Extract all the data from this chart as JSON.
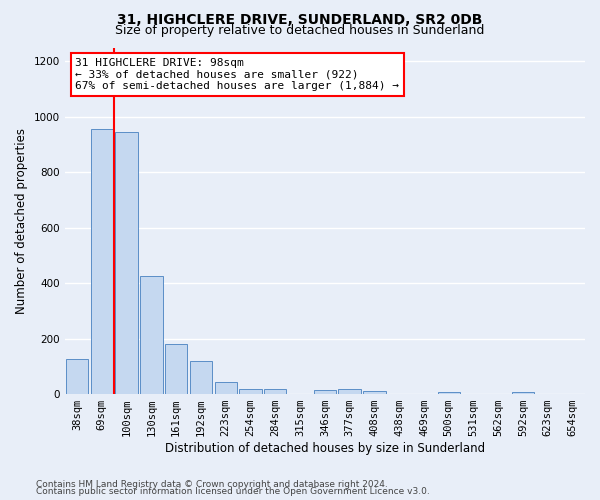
{
  "title": "31, HIGHCLERE DRIVE, SUNDERLAND, SR2 0DB",
  "subtitle": "Size of property relative to detached houses in Sunderland",
  "xlabel": "Distribution of detached houses by size in Sunderland",
  "ylabel": "Number of detached properties",
  "categories": [
    "38sqm",
    "69sqm",
    "100sqm",
    "130sqm",
    "161sqm",
    "192sqm",
    "223sqm",
    "254sqm",
    "284sqm",
    "315sqm",
    "346sqm",
    "377sqm",
    "408sqm",
    "438sqm",
    "469sqm",
    "500sqm",
    "531sqm",
    "562sqm",
    "592sqm",
    "623sqm",
    "654sqm"
  ],
  "values": [
    125,
    955,
    945,
    425,
    182,
    120,
    42,
    20,
    20,
    0,
    15,
    18,
    10,
    0,
    0,
    8,
    0,
    0,
    8,
    0,
    0
  ],
  "bar_color": "#c5d8f0",
  "bar_edge_color": "#5b8ec7",
  "ylim": [
    0,
    1250
  ],
  "yticks": [
    0,
    200,
    400,
    600,
    800,
    1000,
    1200
  ],
  "vline_x": 1.5,
  "annotation_text": "31 HIGHCLERE DRIVE: 98sqm\n← 33% of detached houses are smaller (922)\n67% of semi-detached houses are larger (1,884) →",
  "footer_line1": "Contains HM Land Registry data © Crown copyright and database right 2024.",
  "footer_line2": "Contains public sector information licensed under the Open Government Licence v3.0.",
  "background_color": "#e8eef8",
  "grid_color": "#ffffff",
  "title_fontsize": 10,
  "subtitle_fontsize": 9,
  "axis_label_fontsize": 8.5,
  "tick_fontsize": 7.5,
  "footer_fontsize": 6.5,
  "annotation_fontsize": 8
}
